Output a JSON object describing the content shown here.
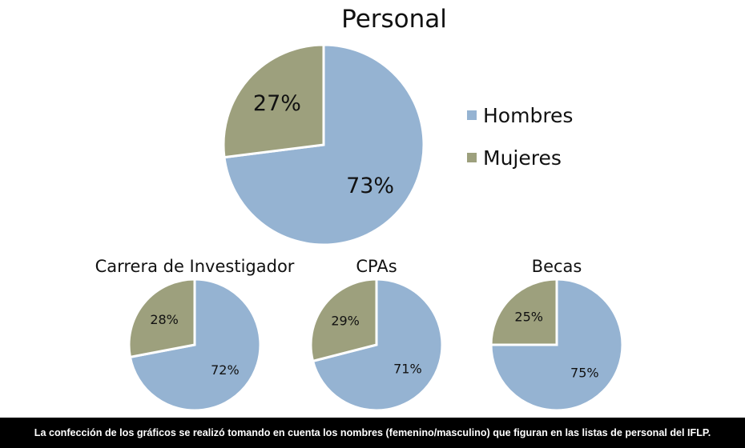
{
  "colors": {
    "hombres": "#95b3d2",
    "mujeres": "#9da07d",
    "border": "#ffffff"
  },
  "chart_data": [
    {
      "type": "pie",
      "title": "Personal",
      "categories": [
        "Hombres",
        "Mujeres"
      ],
      "values": [
        73,
        27
      ],
      "labels": [
        "73%",
        "27%"
      ],
      "legend": "right"
    },
    {
      "type": "pie",
      "title": "Carrera de Investigador",
      "categories": [
        "Hombres",
        "Mujeres"
      ],
      "values": [
        72,
        28
      ],
      "labels": [
        "72%",
        "28%"
      ]
    },
    {
      "type": "pie",
      "title": "CPAs",
      "categories": [
        "Hombres",
        "Mujeres"
      ],
      "values": [
        71,
        29
      ],
      "labels": [
        "71%",
        "29%"
      ]
    },
    {
      "type": "pie",
      "title": "Becas",
      "categories": [
        "Hombres",
        "Mujeres"
      ],
      "values": [
        75,
        25
      ],
      "labels": [
        "75%",
        "25%"
      ]
    }
  ],
  "legend": {
    "items": [
      "Hombres",
      "Mujeres"
    ]
  },
  "footer": {
    "text": "La confección de los gráficos se realizó tomando en cuenta los nombres (femenino/masculino) que figuran en las listas de personal del IFLP."
  }
}
